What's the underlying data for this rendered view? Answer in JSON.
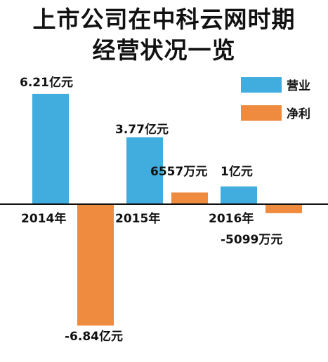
{
  "title_lines": [
    "上市公司在中科云网时期",
    "经营状况一览"
  ],
  "colors": {
    "revenue": "#41ADDE",
    "profit": "#EE8B3E",
    "axis": "#111111"
  },
  "chart_data": {
    "type": "bar",
    "title": "上市公司在中科云网时期经营状况一览",
    "categories": [
      "2014年",
      "2015年",
      "2016年"
    ],
    "unit": "亿元",
    "series": [
      {
        "name": "营业",
        "values": [
          6.21,
          3.77,
          1.0
        ],
        "labels": [
          "6.21亿元",
          "3.77亿元",
          "1亿元"
        ]
      },
      {
        "name": "净利",
        "values": [
          -6.84,
          0.6557,
          -0.5099
        ],
        "labels": [
          "-6.84亿元",
          "6557万元",
          "-5099万元"
        ]
      }
    ],
    "legend_position": "top-right",
    "grid": false
  }
}
